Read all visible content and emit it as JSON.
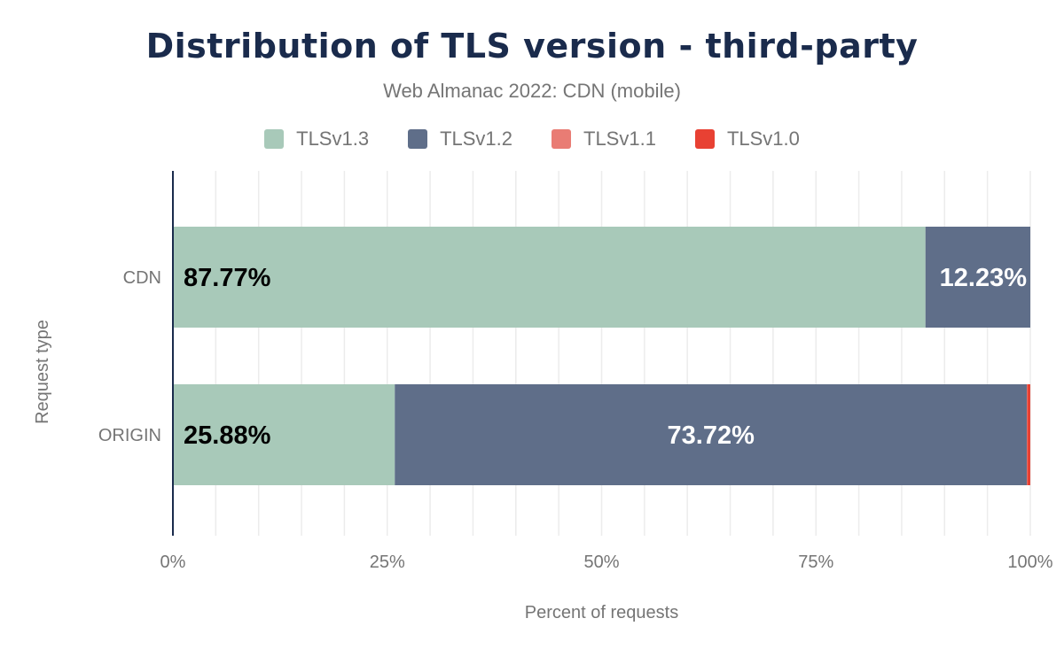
{
  "chart_data": {
    "type": "bar",
    "orientation": "horizontal",
    "stacked": true,
    "title": "Distribution of TLS version - third-party",
    "subtitle": "Web Almanac 2022: CDN (mobile)",
    "xlabel": "Percent of requests",
    "ylabel": "Request type",
    "xlim": [
      0,
      100
    ],
    "x_ticks": [
      "0%",
      "25%",
      "50%",
      "75%",
      "100%"
    ],
    "grid": true,
    "legend_position": "top",
    "categories": [
      "CDN",
      "ORIGIN"
    ],
    "series": [
      {
        "name": "TLSv1.3",
        "color": "#a8c9b9",
        "values": [
          87.77,
          25.88
        ],
        "labels": [
          "87.77%",
          "25.88%"
        ],
        "label_color": "#000000"
      },
      {
        "name": "TLSv1.2",
        "color": "#5f6e89",
        "values": [
          12.23,
          73.72
        ],
        "labels": [
          "12.23%",
          "73.72%"
        ],
        "label_color": "#ffffff"
      },
      {
        "name": "TLSv1.1",
        "color": "#e97c74",
        "values": [
          0,
          0.05
        ],
        "labels": [
          "",
          ""
        ]
      },
      {
        "name": "TLSv1.0",
        "color": "#e84133",
        "values": [
          0,
          0.35
        ],
        "labels": [
          "",
          ""
        ]
      }
    ]
  }
}
